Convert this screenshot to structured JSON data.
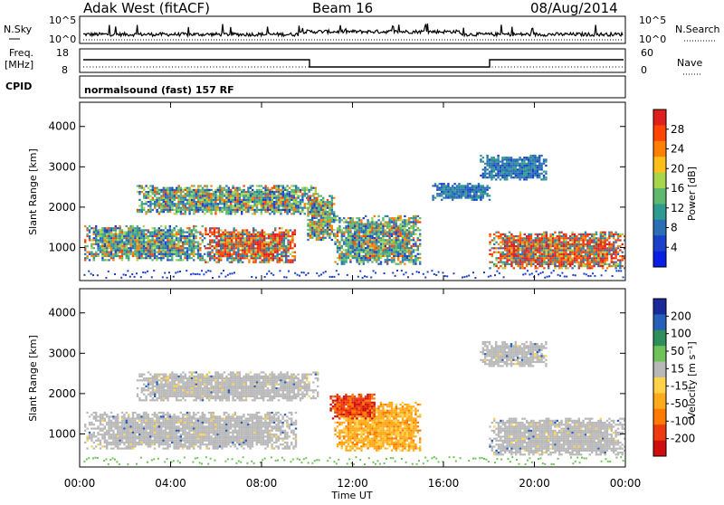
{
  "header": {
    "radar": "Adak West (fitACF)",
    "beam": "Beam 16",
    "date": "08/Aug/2014"
  },
  "strips": {
    "nsky_label": "N.Sky",
    "nsky_ticks": [
      "10^5",
      "10^0"
    ],
    "nsearch_label": "N.Search",
    "nsearch_ticks": [
      "10^5",
      "10^0"
    ],
    "freq_label_1": "Freq.",
    "freq_label_2": "[MHz]",
    "freq_ticks": [
      "18",
      "8"
    ],
    "nave_label": "Nave",
    "nave_ticks": [
      "60",
      "0"
    ],
    "cpid_label": "CPID",
    "cpid_text": "normalsound (fast) 157 RF"
  },
  "power_colorbar": {
    "label": "Power [dB]",
    "ticks": [
      "28",
      "24",
      "20",
      "16",
      "12",
      "8",
      "4"
    ],
    "colors": [
      "#e0201e",
      "#ff4500",
      "#ff7f00",
      "#ffbf1a",
      "#a8d64a",
      "#5fb86e",
      "#2f9a8f",
      "#2a6fb6",
      "#1a3fc9",
      "#0a1ee6"
    ]
  },
  "velocity_colorbar": {
    "label": "Velocity [m s⁻¹]",
    "ticks": [
      "200",
      "100",
      "50",
      "15",
      "-15",
      "-50",
      "-100",
      "-200"
    ],
    "colors": [
      "#1b2a9a",
      "#2760b8",
      "#2f8f5a",
      "#6fc25a",
      "#b8b8b8",
      "#ffd24a",
      "#ffaa1a",
      "#ff7a00",
      "#ee3a10",
      "#d00d0d"
    ]
  },
  "chart_data": [
    {
      "type": "heatmap",
      "title": "Power",
      "ylabel": "Slant Range [km]",
      "yticks": [
        "4000",
        "3000",
        "2000",
        "1000"
      ],
      "x_ticks": [
        "00:00",
        "04:00",
        "08:00",
        "12:00",
        "16:00",
        "20:00",
        "00:00"
      ],
      "ylim": [
        180,
        4600
      ],
      "xlim_hours": [
        0,
        24
      ],
      "echo_regions": [
        {
          "t0": 0.2,
          "t1": 5.5,
          "r0": 700,
          "r1": 1550,
          "level": "mid"
        },
        {
          "t0": 5.5,
          "t1": 9.5,
          "r0": 650,
          "r1": 1500,
          "level": "high"
        },
        {
          "t0": 2.5,
          "t1": 10.5,
          "r0": 1850,
          "r1": 2550,
          "level": "mid"
        },
        {
          "t0": 10.0,
          "t1": 11.2,
          "r0": 1200,
          "r1": 2300,
          "level": "mid"
        },
        {
          "t0": 11.2,
          "t1": 15.0,
          "r0": 600,
          "r1": 1800,
          "level": "mid"
        },
        {
          "t0": 18.0,
          "t1": 24.0,
          "r0": 500,
          "r1": 1400,
          "level": "high"
        },
        {
          "t0": 15.5,
          "t1": 18.0,
          "r0": 2200,
          "r1": 2600,
          "level": "low"
        },
        {
          "t0": 17.6,
          "t1": 20.5,
          "r0": 2700,
          "r1": 3300,
          "level": "low"
        }
      ]
    },
    {
      "type": "heatmap",
      "title": "Velocity",
      "xlabel": "Time UT",
      "ylabel": "Slant Range [km]",
      "yticks": [
        "4000",
        "3000",
        "2000",
        "1000"
      ],
      "x_ticks": [
        "00:00",
        "04:00",
        "08:00",
        "12:00",
        "16:00",
        "20:00",
        "00:00"
      ],
      "ylim": [
        180,
        4600
      ],
      "xlim_hours": [
        0,
        24
      ],
      "echo_regions": [
        {
          "t0": 0.2,
          "t1": 9.5,
          "r0": 650,
          "r1": 1550,
          "value": "gray"
        },
        {
          "t0": 2.5,
          "t1": 10.5,
          "r0": 1850,
          "r1": 2550,
          "value": "gray"
        },
        {
          "t0": 11.2,
          "t1": 15.0,
          "r0": 600,
          "r1": 1800,
          "value": "orange"
        },
        {
          "t0": 11.0,
          "t1": 13.0,
          "r0": 1400,
          "r1": 2000,
          "value": "red"
        },
        {
          "t0": 18.0,
          "t1": 24.0,
          "r0": 500,
          "r1": 1400,
          "value": "gray"
        },
        {
          "t0": 17.6,
          "t1": 20.5,
          "r0": 2700,
          "r1": 3300,
          "value": "gray"
        }
      ]
    }
  ]
}
